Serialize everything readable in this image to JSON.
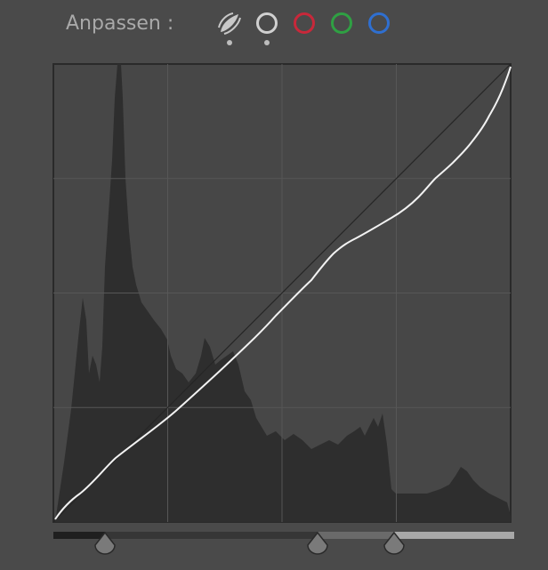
{
  "header": {
    "title": "Anpassen :"
  }
}
